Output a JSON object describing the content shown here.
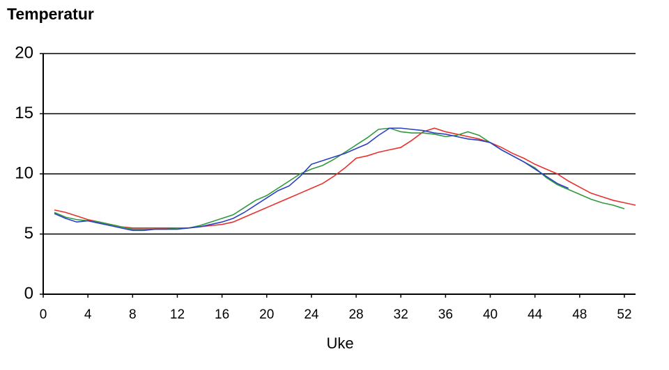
{
  "chart_data": {
    "type": "line",
    "title": "Temperatur",
    "x_label": "Uke",
    "x": [
      1,
      2,
      3,
      4,
      5,
      6,
      7,
      8,
      9,
      10,
      11,
      12,
      13,
      14,
      15,
      16,
      17,
      18,
      19,
      20,
      21,
      22,
      23,
      24,
      25,
      26,
      27,
      28,
      29,
      30,
      31,
      32,
      33,
      34,
      35,
      36,
      37,
      38,
      39,
      40,
      41,
      42,
      43,
      44,
      45,
      46,
      47,
      48,
      49,
      50,
      51,
      52,
      53
    ],
    "series": [
      {
        "color": "#e8302c",
        "values": [
          7.0,
          6.8,
          6.5,
          6.2,
          6.0,
          5.8,
          5.6,
          5.5,
          5.5,
          5.5,
          5.5,
          5.5,
          5.5,
          5.6,
          5.7,
          5.8,
          6.0,
          6.4,
          6.8,
          7.2,
          7.6,
          8.0,
          8.4,
          8.8,
          9.2,
          9.8,
          10.5,
          11.3,
          11.5,
          11.8,
          12.0,
          12.2,
          12.8,
          13.5,
          13.8,
          13.5,
          13.3,
          13.1,
          12.9,
          12.6,
          12.2,
          11.7,
          11.3,
          10.8,
          10.4,
          10.0,
          9.4,
          8.9,
          8.4,
          8.1,
          7.8,
          7.6,
          7.4
        ]
      },
      {
        "color": "#2e9a3a",
        "values": [
          6.8,
          6.4,
          6.2,
          6.1,
          6.0,
          5.8,
          5.6,
          5.4,
          5.4,
          5.4,
          5.4,
          5.5,
          5.5,
          5.7,
          6.0,
          6.3,
          6.6,
          7.2,
          7.8,
          8.2,
          8.8,
          9.4,
          10.0,
          10.4,
          10.7,
          11.2,
          11.8,
          12.4,
          13.0,
          13.7,
          13.8,
          13.5,
          13.4,
          13.4,
          13.3,
          13.1,
          13.2,
          13.5,
          13.2,
          12.6,
          12.0,
          11.5,
          11.0,
          10.5,
          9.7,
          9.1,
          8.7,
          8.3,
          7.9,
          7.6,
          7.4,
          7.1,
          null
        ]
      },
      {
        "color": "#2a3fc4",
        "values": [
          6.7,
          6.3,
          6.0,
          6.1,
          5.9,
          5.7,
          5.5,
          5.3,
          5.3,
          5.4,
          5.4,
          5.4,
          5.5,
          5.6,
          5.8,
          6.0,
          6.3,
          6.8,
          7.4,
          8.0,
          8.6,
          9.0,
          9.8,
          10.8,
          11.1,
          11.4,
          11.7,
          12.1,
          12.5,
          13.2,
          13.8,
          13.8,
          13.7,
          13.6,
          13.4,
          13.3,
          13.1,
          12.9,
          12.8,
          12.6,
          12.0,
          11.5,
          11.0,
          10.4,
          9.8,
          9.2,
          8.8,
          null,
          null,
          null,
          null,
          null,
          null
        ]
      }
    ],
    "xlim": [
      0,
      53
    ],
    "xticks": [
      0,
      4,
      8,
      12,
      16,
      20,
      24,
      28,
      32,
      36,
      40,
      44,
      48,
      52
    ],
    "ylim": [
      0,
      20
    ],
    "yticks": [
      0,
      5,
      10,
      15,
      20
    ],
    "grid": true
  }
}
